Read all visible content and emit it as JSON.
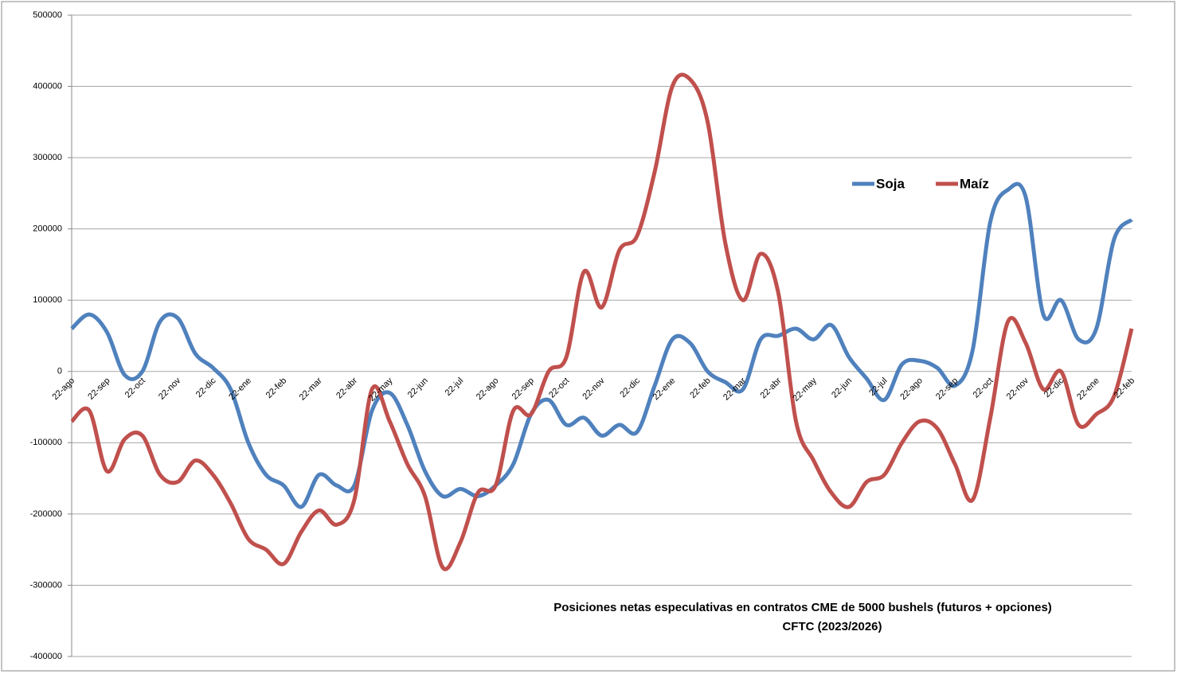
{
  "chart_data": {
    "type": "line",
    "title": [
      "Posiciones netas especulativas en contratos CME de 5000 bushels (futuros + opciones)",
      "CFTC (2023/2026)"
    ],
    "categories": [
      "22-ago",
      null,
      "22-sep",
      null,
      "22-oct",
      null,
      "22-nov",
      null,
      "22-dic",
      null,
      "22-ene",
      null,
      "22-feb",
      null,
      "22-mar",
      null,
      "22-abr",
      null,
      "22-may",
      null,
      "22-jun",
      null,
      "22-jul",
      null,
      "22-ago",
      null,
      "22-sep",
      null,
      "22-oct",
      null,
      "22-nov",
      null,
      "22-dic",
      null,
      "22-ene",
      null,
      "22-feb",
      null,
      "22-mar",
      null,
      "22-abr",
      null,
      "22-may",
      null,
      "22-jun",
      null,
      "22-jul",
      null,
      "22-ago",
      null,
      "22-sep",
      null,
      "22-oct",
      null,
      "22-nov",
      null,
      "22-dic",
      null,
      "22-ene",
      null,
      "22-feb"
    ],
    "series": [
      {
        "name": "Soja",
        "color": "#4f81bd",
        "values": [
          60000,
          80000,
          55000,
          -5000,
          0,
          70000,
          75000,
          25000,
          5000,
          -25000,
          -100000,
          -145000,
          -160000,
          -190000,
          -145000,
          -160000,
          -160000,
          -55000,
          -30000,
          -75000,
          -140000,
          -175000,
          -165000,
          -175000,
          -160000,
          -130000,
          -60000,
          -40000,
          -75000,
          -65000,
          -90000,
          -75000,
          -85000,
          -20000,
          45000,
          40000,
          0,
          -15000,
          -25000,
          45000,
          50000,
          60000,
          45000,
          65000,
          20000,
          -10000,
          -40000,
          10000,
          15000,
          5000,
          -20000,
          30000,
          210000,
          255000,
          245000,
          80000,
          100000,
          45000,
          60000,
          185000,
          213000
        ]
      },
      {
        "name": "Maíz",
        "color": "#c0504d",
        "values": [
          -70000,
          -55000,
          -140000,
          -95000,
          -90000,
          -145000,
          -155000,
          -125000,
          -145000,
          -185000,
          -235000,
          -250000,
          -270000,
          -225000,
          -195000,
          -215000,
          -180000,
          -25000,
          -70000,
          -130000,
          -175000,
          -275000,
          -240000,
          -170000,
          -160000,
          -55000,
          -60000,
          0,
          20000,
          140000,
          90000,
          170000,
          190000,
          280000,
          400000,
          410000,
          350000,
          180000,
          100000,
          165000,
          110000,
          -70000,
          -125000,
          -170000,
          -190000,
          -155000,
          -145000,
          -100000,
          -70000,
          -80000,
          -130000,
          -180000,
          -65000,
          70000,
          40000,
          -25000,
          0,
          -75000,
          -60000,
          -35000,
          60000
        ]
      }
    ],
    "ylim": [
      -400000,
      500000
    ],
    "yticks": [
      -400000,
      -300000,
      -200000,
      -100000,
      0,
      100000,
      200000,
      300000,
      400000,
      500000
    ],
    "grid": true
  }
}
